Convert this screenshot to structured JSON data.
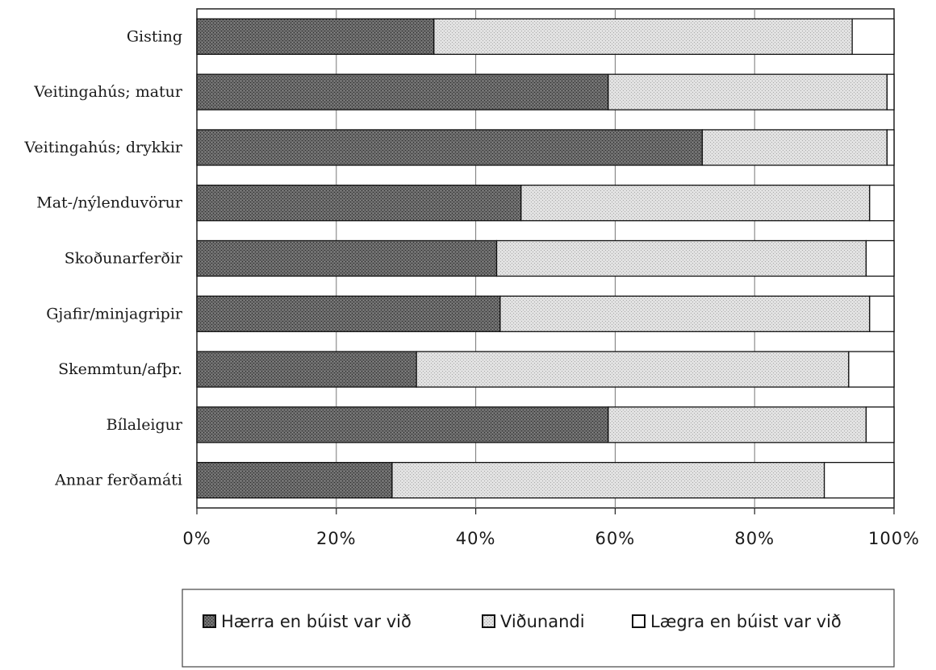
{
  "chart_data": {
    "type": "bar",
    "orientation": "horizontal",
    "stacked": true,
    "normalized_percent": true,
    "categories": [
      "Gisting",
      "Veitingahús; matur",
      "Veitingahús; drykkir",
      "Mat-/nýlenduvörur",
      "Skoðunarferðir",
      "Gjafir/minjagripir",
      "Skemmtun/afþr.",
      "Bílaleigur",
      "Annar ferðamáti"
    ],
    "series": [
      {
        "name": "Hærra en búist var við",
        "values": [
          34,
          59,
          72.5,
          46.5,
          43,
          43.5,
          31.5,
          59,
          28
        ],
        "color": "#5a5a5a"
      },
      {
        "name": "Viðunandi",
        "values": [
          60,
          40,
          26.5,
          50,
          53,
          53,
          62,
          37,
          62
        ],
        "color": "#d0d0d0"
      },
      {
        "name": "Lægra en búist var við",
        "values": [
          6,
          1,
          1,
          3.5,
          4,
          3.5,
          6.5,
          4,
          10
        ],
        "color": "#ffffff"
      }
    ],
    "x_ticks": [
      "0%",
      "20%",
      "40%",
      "60%",
      "80%",
      "100%"
    ],
    "xlim": [
      0,
      100
    ],
    "grid": true,
    "legend_position": "bottom",
    "title": "",
    "xlabel": "",
    "ylabel": ""
  }
}
